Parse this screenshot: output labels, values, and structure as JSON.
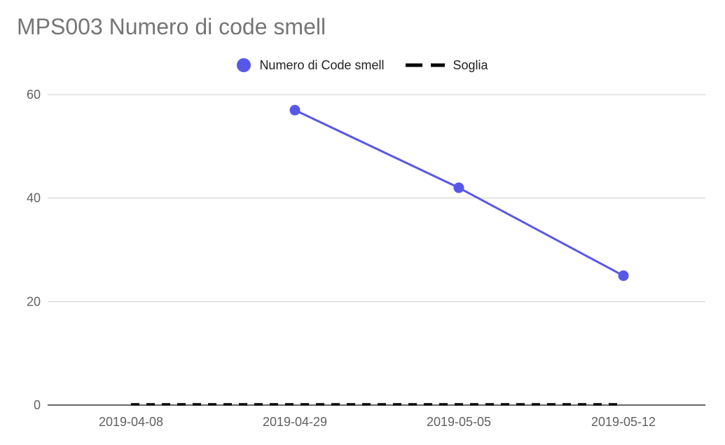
{
  "chart_data": {
    "type": "line",
    "title": "MPS003 Numero di code smell",
    "xlabel": "",
    "ylabel": "",
    "categories": [
      "2019-04-08",
      "2019-04-29",
      "2019-05-05",
      "2019-05-12"
    ],
    "ylim": [
      0,
      60
    ],
    "yticks": [
      0,
      20,
      40,
      60
    ],
    "grid": true,
    "legend_position": "top",
    "series": [
      {
        "name": "Numero di Code smell",
        "values": [
          null,
          57,
          42,
          25
        ],
        "color": "#5858e8",
        "style": "solid",
        "markers": true
      },
      {
        "name": "Soglia",
        "values": [
          0,
          0,
          0,
          0
        ],
        "color": "#000000",
        "style": "dashed",
        "markers": false
      }
    ]
  }
}
